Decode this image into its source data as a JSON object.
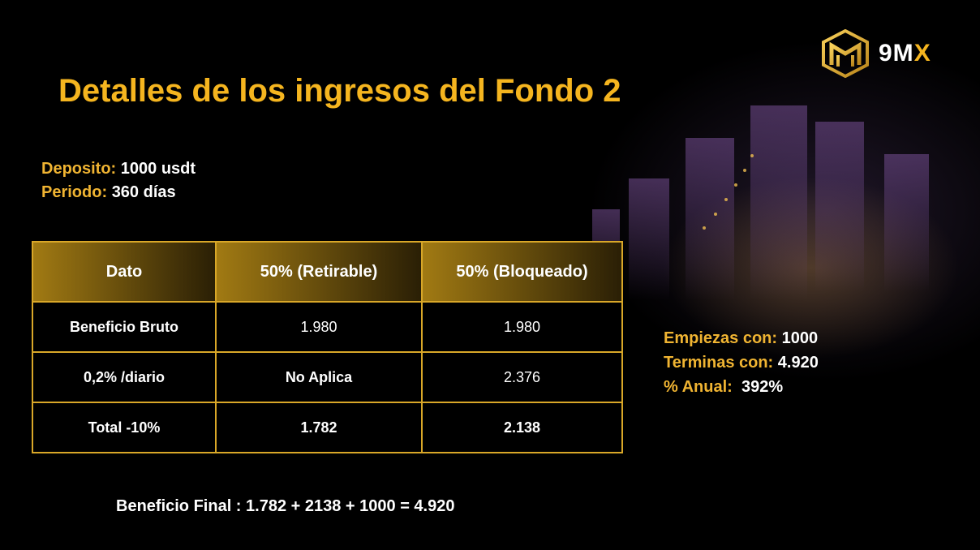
{
  "brand": {
    "name_main": "9M",
    "name_accent": "X",
    "accent_color": "#f5b51f"
  },
  "title": "Detalles de los ingresos del Fondo 2",
  "deposit": {
    "label": "Deposito:",
    "value": "1000 usdt"
  },
  "period": {
    "label": "Periodo:",
    "value": "360 días"
  },
  "table": {
    "headers": [
      "Dato",
      "50% (Retirable)",
      "50% (Bloqueado)"
    ],
    "rows": [
      [
        "Beneficio Bruto",
        "1.980",
        "1.980"
      ],
      [
        "0,2% /diario",
        "No Aplica",
        "2.376"
      ],
      [
        "Total -10%",
        "1.782",
        "2.138"
      ]
    ]
  },
  "summary": {
    "start": {
      "label": "Empiezas con:",
      "value": "1000"
    },
    "end": {
      "label": "Terminas con:",
      "value": "4.920"
    },
    "annual": {
      "label": "% Anual:",
      "value": "392%"
    }
  },
  "final": "Beneficio Final : 1.782 + 2138 + 1000 =  4.920"
}
